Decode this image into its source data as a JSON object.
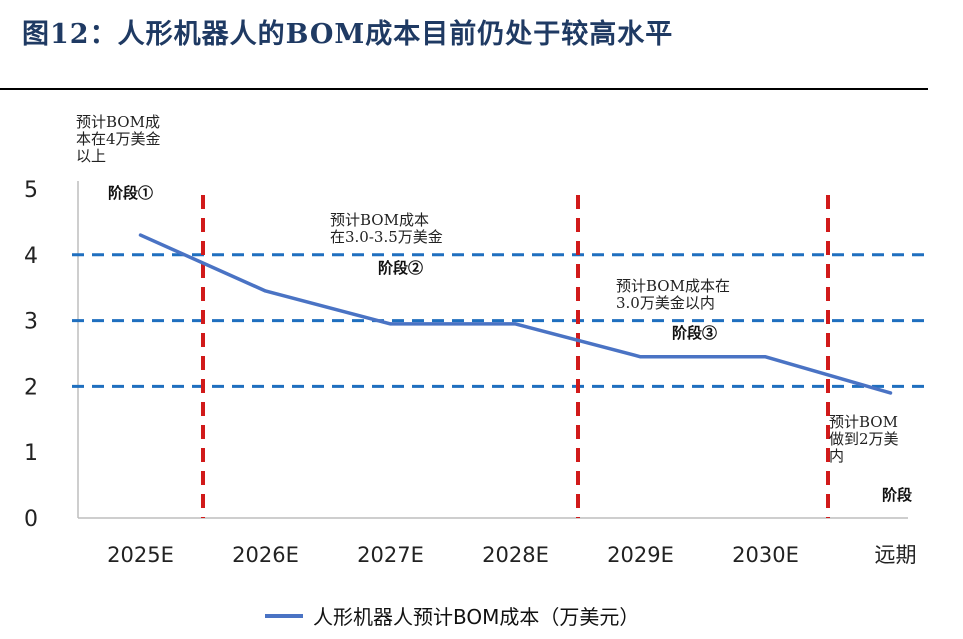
{
  "figure_title": "图12：人形机器人的BOM成本目前仍处于较高水平",
  "colors": {
    "series": "#4a73c4",
    "threshold": "#1f6fbf",
    "stage_divider": "#d11a1a",
    "title": "#1f3a63"
  },
  "chart_data": {
    "type": "line",
    "categories": [
      "2025E",
      "2026E",
      "2027E",
      "2028E",
      "2029E",
      "2030E",
      "远期"
    ],
    "series": [
      {
        "name": "人形机器人预计BOM成本（万美元）",
        "values": [
          4.3,
          3.45,
          2.95,
          2.95,
          2.45,
          2.45,
          1.9
        ]
      }
    ],
    "yticks": [
      "0",
      "1",
      "2",
      "3",
      "4",
      "5"
    ],
    "ylim": [
      0,
      5
    ],
    "threshold_lines": [
      4,
      3,
      2
    ],
    "stage_dividers_after": [
      "2025E",
      "2028E",
      "2030E"
    ],
    "legend_position": "bottom",
    "annotations": [
      {
        "id": "s1",
        "note_lines": [
          "预计BOM成",
          "本在4万美金",
          "以上"
        ],
        "stage": "阶段①"
      },
      {
        "id": "s2",
        "note_lines": [
          "预计BOM成本",
          "在3.0-3.5万美金"
        ],
        "stage": "阶段②"
      },
      {
        "id": "s3",
        "note_lines": [
          "预计BOM成本在",
          "3.0万美金以内"
        ],
        "stage": "阶段③"
      },
      {
        "id": "s4",
        "note_lines": [
          "预计BOM",
          "做到2万美",
          "内"
        ],
        "stage": "阶段"
      }
    ]
  }
}
